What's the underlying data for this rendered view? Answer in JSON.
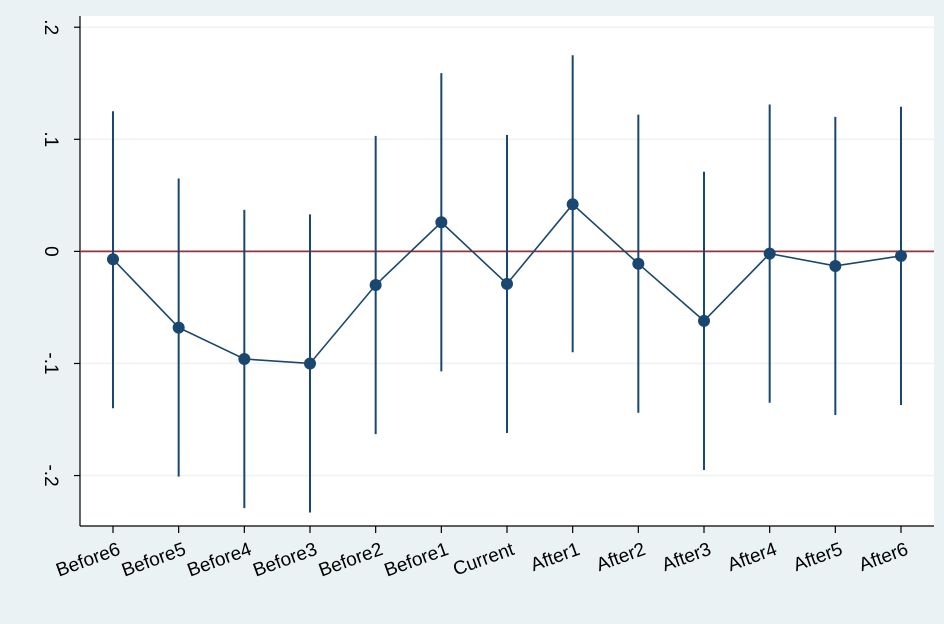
{
  "chart_data": {
    "type": "scatter",
    "title": "",
    "xlabel": "",
    "ylabel": "",
    "categories": [
      "Before6",
      "Before5",
      "Before4",
      "Before3",
      "Before2",
      "Before1",
      "Current",
      "After1",
      "After2",
      "After3",
      "After4",
      "After5",
      "After6"
    ],
    "series": [
      {
        "values": [
          -0.007,
          -0.068,
          -0.096,
          -0.1,
          -0.03,
          0.026,
          -0.029,
          0.042,
          -0.011,
          -0.062,
          -0.002,
          -0.013,
          -0.004
        ],
        "ci_lower": [
          -0.14,
          -0.201,
          -0.229,
          -0.233,
          -0.163,
          -0.107,
          -0.162,
          -0.09,
          -0.144,
          -0.195,
          -0.135,
          -0.146,
          -0.137
        ],
        "ci_upper": [
          0.125,
          0.065,
          0.037,
          0.033,
          0.103,
          0.159,
          0.104,
          0.175,
          0.122,
          0.071,
          0.131,
          0.12,
          0.129
        ]
      }
    ],
    "ylim": [
      -0.245,
      0.21
    ],
    "yticks": [
      -0.2,
      -0.1,
      0,
      0.1,
      0.2
    ],
    "ytick_labels": [
      "-.2",
      "-.1",
      "0",
      ".1",
      ".2"
    ],
    "reference_line": 0,
    "grid": true,
    "colors": {
      "background": "#eaf2f3",
      "plot_background": "#ffffff",
      "grid": "#eaf2f3",
      "series": "#1a476f",
      "reference_line": "#90353b"
    }
  }
}
